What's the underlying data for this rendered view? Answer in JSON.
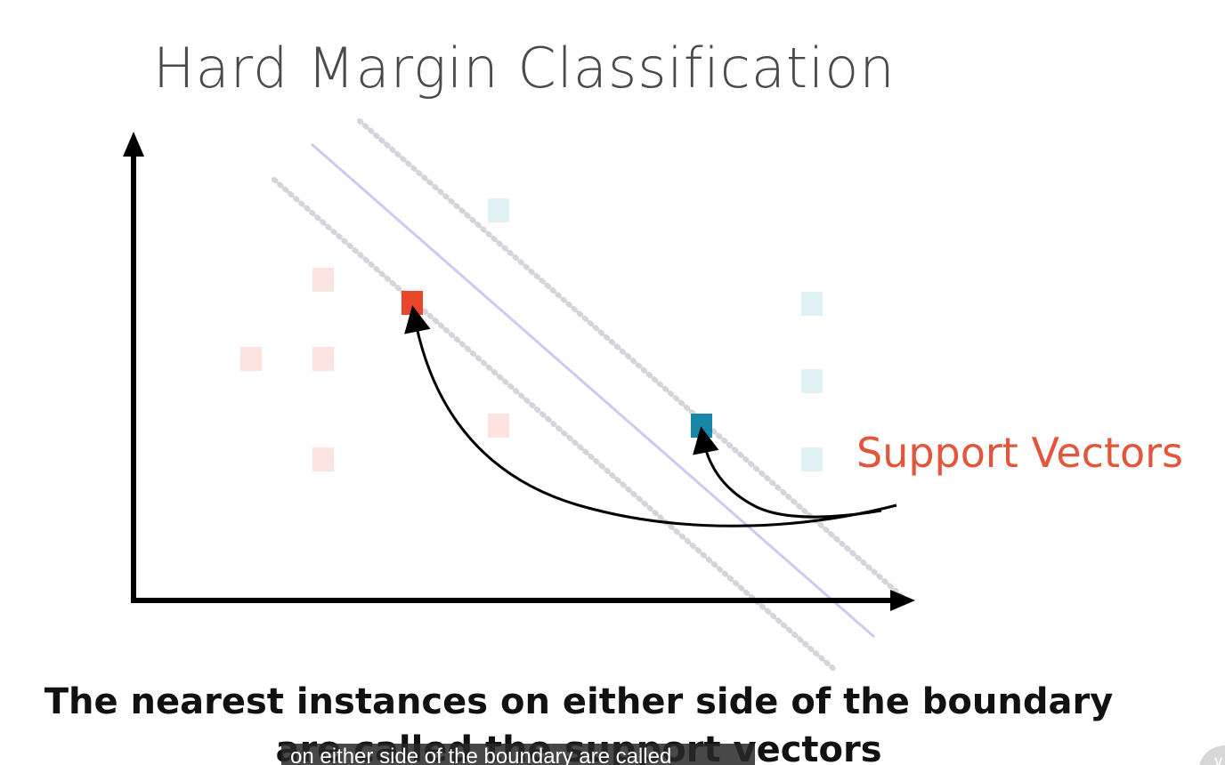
{
  "slide": {
    "title": "Hard Margin Classification"
  },
  "annotation": {
    "label": "Support Vectors",
    "color": "#e2573b"
  },
  "caption": {
    "line1": "The nearest instances on either side of the boundary",
    "line2": "are called the support vectors"
  },
  "subtitle": {
    "text": "on either side of the boundary are called"
  },
  "colors": {
    "class_a_faded": "#fde3df",
    "class_a_support": "#e8472c",
    "class_b_faded": "#dff1f5",
    "class_b_support": "#1887a8",
    "boundary": "#c8c2f0",
    "margin": "#d6d6de",
    "axis": "#000000"
  },
  "icons": {
    "corner_button": "chevron-down-icon"
  }
}
